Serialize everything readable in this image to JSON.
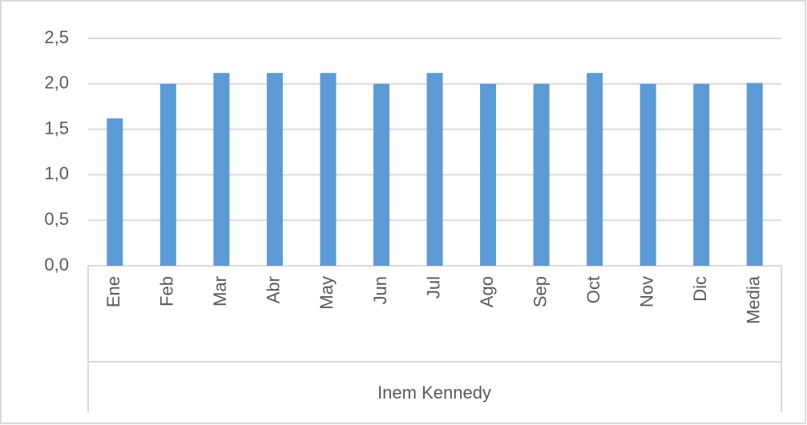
{
  "chart_data": {
    "type": "bar",
    "categories": [
      "Ene",
      "Feb",
      "Mar",
      "Abr",
      "May",
      "Jun",
      "Jul",
      "Ago",
      "Sep",
      "Oct",
      "Nov",
      "Dic",
      "Media"
    ],
    "values": [
      1.62,
      2.0,
      2.12,
      2.12,
      2.12,
      2.0,
      2.12,
      2.0,
      2.0,
      2.12,
      2.0,
      2.0,
      2.01
    ],
    "color": "#5b9bd5",
    "xlabel": "Inem Kennedy",
    "ylim": [
      0,
      2.5
    ],
    "yticks": [
      {
        "value": 0,
        "label": "0,0"
      },
      {
        "value": 0.5,
        "label": "0,5"
      },
      {
        "value": 1,
        "label": "1,0"
      },
      {
        "value": 1.5,
        "label": "1,5"
      },
      {
        "value": 2,
        "label": "2,0"
      },
      {
        "value": 2.5,
        "label": "2,5"
      }
    ],
    "grid": true
  }
}
